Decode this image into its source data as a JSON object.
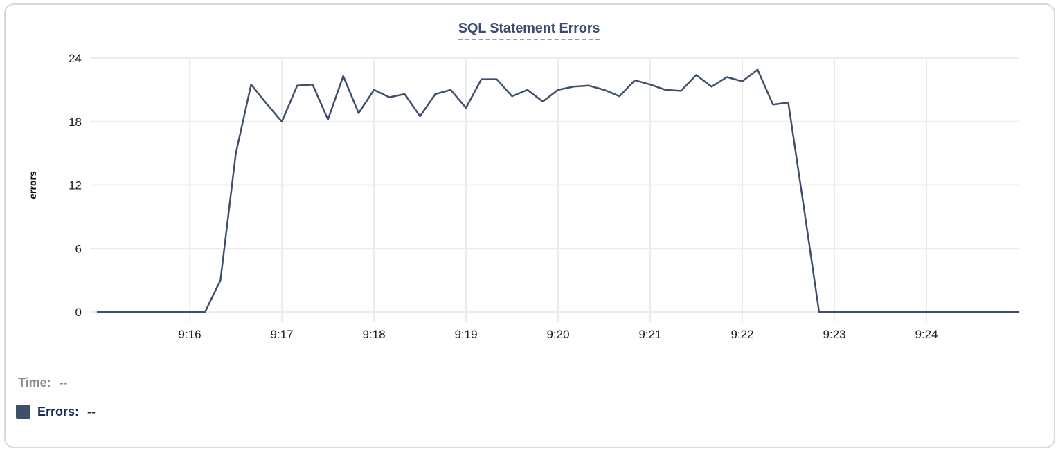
{
  "chart": {
    "title": "SQL Statement Errors"
  },
  "legend": {
    "time_label": "Time:",
    "time_value": "--",
    "errors_label": "Errors:",
    "errors_value": "--"
  },
  "colors": {
    "series_line": "#3f4e6b",
    "legend_swatch": "#41506a",
    "title_text": "#3c4c6e",
    "title_underline": "#8f9ab5",
    "grid": "#ececec",
    "axis_text": "#1d1d1f",
    "y_axis_title_text": "#0b0b0b",
    "time_label_text": "#888b91",
    "errors_label_text": "#1b2a4e",
    "card_border": "#d9d9d9"
  },
  "chart_data": {
    "type": "line",
    "title": "SQL Statement Errors",
    "xlabel": "",
    "ylabel": "errors",
    "ylim": [
      0,
      24
    ],
    "y_ticks": [
      0,
      6,
      12,
      18,
      24
    ],
    "x_tick_labels": [
      "9:16",
      "9:17",
      "9:18",
      "9:19",
      "9:20",
      "9:21",
      "9:22",
      "9:23",
      "9:24"
    ],
    "x_domain": [
      "9:14:55",
      "9:25:00"
    ],
    "grid": true,
    "legend_position": "bottom-left",
    "series": [
      {
        "name": "Errors",
        "x": [
          "9:15:00",
          "9:15:10",
          "9:15:20",
          "9:15:30",
          "9:15:40",
          "9:15:50",
          "9:16:00",
          "9:16:10",
          "9:16:20",
          "9:16:30",
          "9:16:40",
          "9:16:50",
          "9:17:00",
          "9:17:10",
          "9:17:20",
          "9:17:30",
          "9:17:40",
          "9:17:50",
          "9:18:00",
          "9:18:10",
          "9:18:20",
          "9:18:30",
          "9:18:40",
          "9:18:50",
          "9:19:00",
          "9:19:10",
          "9:19:20",
          "9:19:30",
          "9:19:40",
          "9:19:50",
          "9:20:00",
          "9:20:10",
          "9:20:20",
          "9:20:30",
          "9:20:40",
          "9:20:50",
          "9:21:00",
          "9:21:10",
          "9:21:20",
          "9:21:30",
          "9:21:40",
          "9:21:50",
          "9:22:00",
          "9:22:10",
          "9:22:20",
          "9:22:30",
          "9:22:40",
          "9:22:50",
          "9:23:00",
          "9:23:10",
          "9:23:20",
          "9:23:30",
          "9:23:40",
          "9:23:50",
          "9:24:00",
          "9:24:10",
          "9:24:20",
          "9:24:30",
          "9:24:40",
          "9:24:50",
          "9:25:00"
        ],
        "values": [
          0,
          0,
          0,
          0,
          0,
          0,
          0,
          0,
          3,
          15,
          21.5,
          19.7,
          18,
          21.4,
          21.5,
          18.2,
          22.3,
          18.8,
          21,
          20.3,
          20.6,
          18.5,
          20.6,
          21,
          19.3,
          22,
          22,
          20.4,
          21,
          19.9,
          21,
          21.3,
          21.4,
          21,
          20.4,
          21.9,
          21.5,
          21,
          20.9,
          22.4,
          21.3,
          22.2,
          21.8,
          22.9,
          19.6,
          19.8,
          10,
          0,
          0,
          0,
          0,
          0,
          0,
          0,
          0,
          0,
          0,
          0,
          0,
          0,
          0
        ]
      }
    ]
  }
}
